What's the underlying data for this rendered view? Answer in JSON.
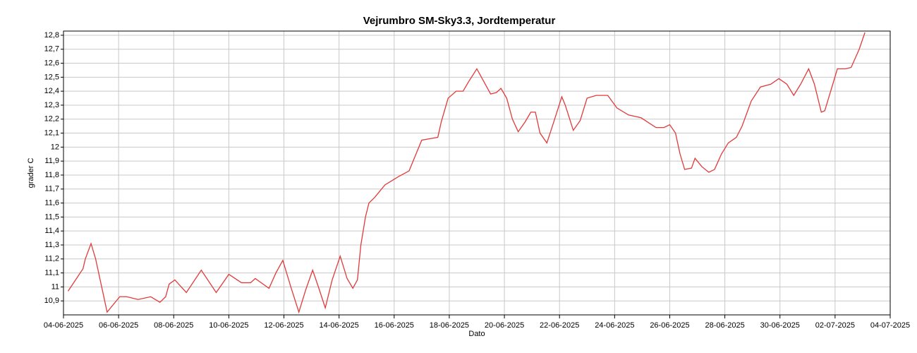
{
  "chart_data": {
    "type": "line",
    "title": "Vejrumbro SM-Sky3.3, Jordtemperatur",
    "x_label": "Dato",
    "y_label": "grader C",
    "x": [
      "2025-06-04T04:00",
      "2025-06-04T17:00",
      "2025-06-04T19:00",
      "2025-06-05T00:00",
      "2025-06-05T04:00",
      "2025-06-05T14:00",
      "2025-06-06T01:00",
      "2025-06-06T07:00",
      "2025-06-06T17:00",
      "2025-06-07T04:00",
      "2025-06-07T12:00",
      "2025-06-07T17:00",
      "2025-06-07T20:00",
      "2025-06-08T01:00",
      "2025-06-08T11:00",
      "2025-06-09T00:00",
      "2025-06-09T13:00",
      "2025-06-10T00:00",
      "2025-06-10T11:00",
      "2025-06-10T19:00",
      "2025-06-10T23:00",
      "2025-06-11T11:00",
      "2025-06-11T17:00",
      "2025-06-11T23:00",
      "2025-06-12T06:00",
      "2025-06-12T13:00",
      "2025-06-12T19:00",
      "2025-06-13T01:00",
      "2025-06-13T06:00",
      "2025-06-13T12:00",
      "2025-06-13T18:00",
      "2025-06-14T01:00",
      "2025-06-14T07:00",
      "2025-06-14T12:00",
      "2025-06-14T16:00",
      "2025-06-14T19:00",
      "2025-06-14T23:00",
      "2025-06-15T02:00",
      "2025-06-15T07:00",
      "2025-06-15T16:00",
      "2025-06-15T22:00",
      "2025-06-16T04:00",
      "2025-06-16T13:00",
      "2025-06-16T19:00",
      "2025-06-17T00:00",
      "2025-06-17T07:00",
      "2025-06-17T14:00",
      "2025-06-17T17:00",
      "2025-06-17T23:00",
      "2025-06-18T06:00",
      "2025-06-18T12:00",
      "2025-06-18T17:00",
      "2025-06-19T00:00",
      "2025-06-19T06:00",
      "2025-06-19T12:00",
      "2025-06-19T17:00",
      "2025-06-19T21:00",
      "2025-06-20T02:00",
      "2025-06-20T07:00",
      "2025-06-20T12:00",
      "2025-06-20T18:00",
      "2025-06-20T23:00",
      "2025-06-21T03:00",
      "2025-06-21T07:00",
      "2025-06-21T13:00",
      "2025-06-21T19:00",
      "2025-06-22T02:00",
      "2025-06-22T05:00",
      "2025-06-22T12:00",
      "2025-06-22T18:00",
      "2025-06-23T00:00",
      "2025-06-23T08:00",
      "2025-06-23T18:00",
      "2025-06-24T02:00",
      "2025-06-24T12:00",
      "2025-06-24T23:00",
      "2025-06-25T12:00",
      "2025-06-25T19:00",
      "2025-06-26T00:00",
      "2025-06-26T05:00",
      "2025-06-26T09:00",
      "2025-06-26T13:00",
      "2025-06-26T19:00",
      "2025-06-26T22:00",
      "2025-06-27T04:00",
      "2025-06-27T10:00",
      "2025-06-27T15:00",
      "2025-06-27T21:00",
      "2025-06-28T03:00",
      "2025-06-28T10:00",
      "2025-06-28T15:00",
      "2025-06-28T23:00",
      "2025-06-29T07:00",
      "2025-06-29T16:00",
      "2025-06-29T23:00",
      "2025-06-30T06:00",
      "2025-06-30T12:00",
      "2025-06-30T18:00",
      "2025-07-01T01:00",
      "2025-07-01T06:00",
      "2025-07-01T12:00",
      "2025-07-01T15:00",
      "2025-07-01T22:00",
      "2025-07-02T02:00",
      "2025-07-02T09:00",
      "2025-07-02T14:00",
      "2025-07-02T21:00",
      "2025-07-03T02:00"
    ],
    "series": [
      {
        "color": "#e03a3a",
        "values": [
          10.97,
          11.13,
          11.2,
          11.31,
          11.2,
          10.82,
          10.93,
          10.93,
          10.91,
          10.93,
          10.89,
          10.93,
          11.02,
          11.05,
          10.96,
          11.12,
          10.96,
          11.09,
          11.03,
          11.03,
          11.06,
          10.99,
          11.1,
          11.19,
          11.0,
          10.82,
          10.98,
          11.12,
          11.0,
          10.85,
          11.05,
          11.22,
          11.06,
          10.99,
          11.05,
          11.3,
          11.5,
          11.6,
          11.64,
          11.73,
          11.76,
          11.79,
          11.83,
          11.95,
          12.05,
          12.06,
          12.07,
          12.18,
          12.35,
          12.4,
          12.4,
          12.47,
          12.56,
          12.47,
          12.38,
          12.39,
          12.42,
          12.35,
          12.2,
          12.11,
          12.18,
          12.25,
          12.25,
          12.1,
          12.03,
          12.18,
          12.36,
          12.3,
          12.12,
          12.19,
          12.35,
          12.37,
          12.37,
          12.28,
          12.23,
          12.21,
          12.14,
          12.14,
          12.16,
          12.1,
          11.95,
          11.84,
          11.85,
          11.92,
          11.86,
          11.82,
          11.84,
          11.95,
          12.03,
          12.07,
          12.15,
          12.33,
          12.43,
          12.45,
          12.49,
          12.45,
          12.37,
          12.45,
          12.56,
          12.45,
          12.25,
          12.26,
          12.45,
          12.56,
          12.56,
          12.57,
          12.7,
          12.82
        ]
      }
    ],
    "xlim": [
      "2025-06-04T00:00",
      "2025-07-04T00:00"
    ],
    "xticks": [
      {
        "value": "2025-06-04T00:00",
        "label": "04-06-2025"
      },
      {
        "value": "2025-06-06T00:00",
        "label": "06-06-2025"
      },
      {
        "value": "2025-06-08T00:00",
        "label": "08-06-2025"
      },
      {
        "value": "2025-06-10T00:00",
        "label": "10-06-2025"
      },
      {
        "value": "2025-06-12T00:00",
        "label": "12-06-2025"
      },
      {
        "value": "2025-06-14T00:00",
        "label": "14-06-2025"
      },
      {
        "value": "2025-06-16T00:00",
        "label": "16-06-2025"
      },
      {
        "value": "2025-06-18T00:00",
        "label": "18-06-2025"
      },
      {
        "value": "2025-06-20T00:00",
        "label": "20-06-2025"
      },
      {
        "value": "2025-06-22T00:00",
        "label": "22-06-2025"
      },
      {
        "value": "2025-06-24T00:00",
        "label": "24-06-2025"
      },
      {
        "value": "2025-06-26T00:00",
        "label": "26-06-2025"
      },
      {
        "value": "2025-06-28T00:00",
        "label": "28-06-2025"
      },
      {
        "value": "2025-06-30T00:00",
        "label": "30-06-2025"
      },
      {
        "value": "2025-07-02T00:00",
        "label": "02-07-2025"
      },
      {
        "value": "2025-07-04T00:00",
        "label": "04-07-2025"
      }
    ],
    "ylim": [
      10.8,
      12.83
    ],
    "yticks": [
      {
        "value": 10.9,
        "label": "10,9"
      },
      11,
      {
        "value": 11.1,
        "label": "11,1"
      },
      {
        "value": 11.2,
        "label": "11,2"
      },
      {
        "value": 11.3,
        "label": "11,3"
      },
      {
        "value": 11.4,
        "label": "11,4"
      },
      {
        "value": 11.5,
        "label": "11,5"
      },
      {
        "value": 11.6,
        "label": "11,6"
      },
      {
        "value": 11.7,
        "label": "11,7"
      },
      {
        "value": 11.8,
        "label": "11,8"
      },
      {
        "value": 11.9,
        "label": "11,9"
      },
      12,
      {
        "value": 12.1,
        "label": "12,1"
      },
      {
        "value": 12.2,
        "label": "12,2"
      },
      {
        "value": 12.3,
        "label": "12,3"
      },
      {
        "value": 12.4,
        "label": "12,4"
      },
      {
        "value": 12.5,
        "label": "12,5"
      },
      {
        "value": 12.6,
        "label": "12,6"
      },
      {
        "value": 12.7,
        "label": "12,7"
      },
      {
        "value": 12.8,
        "label": "12,8"
      }
    ],
    "grid": true
  }
}
